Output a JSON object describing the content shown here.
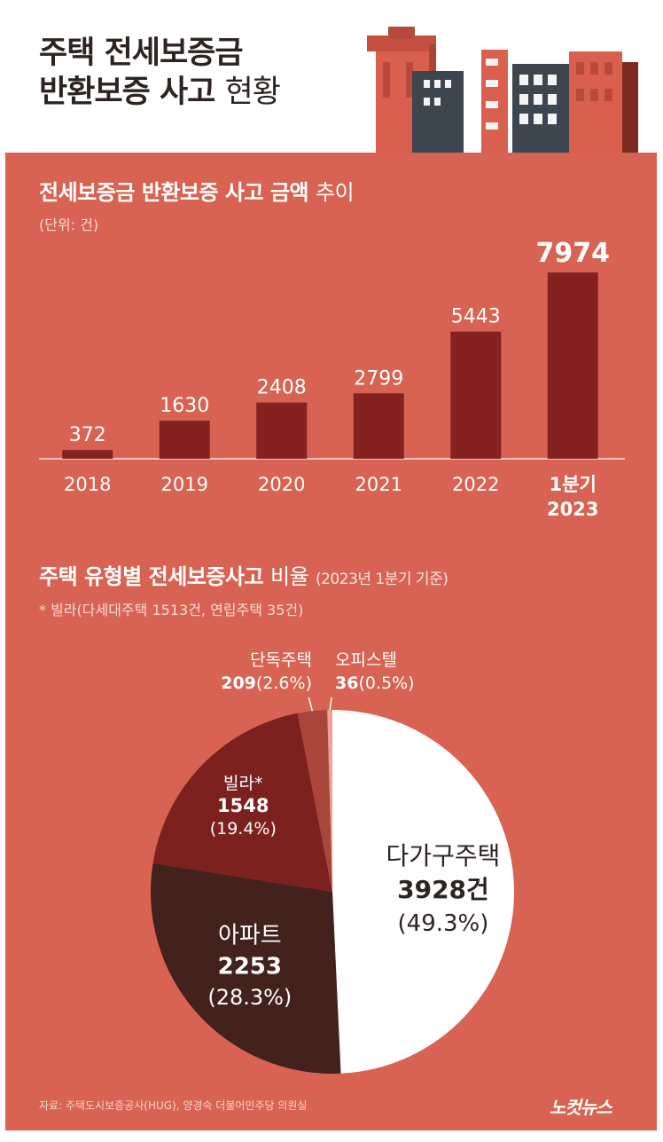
{
  "header": {
    "title_line1": "주택 전세보증금",
    "title_line2_bold": "반환보증 사고",
    "title_line2_light": "현황"
  },
  "chart_data": [
    {
      "type": "bar",
      "title_bold": "전세보증금 반환보증 사고 금액",
      "title_light": "추이",
      "unit_note": "(단위: 건)",
      "categories": [
        "2018",
        "2019",
        "2020",
        "2021",
        "2022",
        "1분기 2023"
      ],
      "category_lines": [
        [
          "2018"
        ],
        [
          "2019"
        ],
        [
          "2020"
        ],
        [
          "2021"
        ],
        [
          "2022"
        ],
        [
          "1분기",
          "2023"
        ]
      ],
      "values": [
        372,
        1630,
        2408,
        2799,
        5443,
        7974
      ],
      "value_labels": [
        "372",
        "1630",
        "2408",
        "2799",
        "5443",
        "7974"
      ],
      "highlight_index": 5,
      "ylim": [
        0,
        9000
      ],
      "colors": {
        "bar": "#84221f",
        "text": "#ffffff",
        "axis": "#ffffff"
      }
    },
    {
      "type": "pie",
      "title_bold": "주택 유형별 전세보증사고",
      "title_light": "비율",
      "title_small": "(2023년 1분기 기준)",
      "footnote": "* 빌라(다세대주택 1513건, 연립주택 35건)",
      "slices": [
        {
          "name": "다가구주택",
          "value": 3928,
          "value_text": "3928건",
          "percent_text": "(49.3%)",
          "color": "#ffffff",
          "text_color": "#2d2422"
        },
        {
          "name": "아파트",
          "value": 2253,
          "value_text": "2253",
          "percent_text": "(28.3%)",
          "color": "#43211d",
          "text_color": "#ffffff"
        },
        {
          "name": "빌라*",
          "value": 1548,
          "value_text": "1548",
          "percent_text": "(19.4%)",
          "color": "#7d211e",
          "text_color": "#ffffff"
        },
        {
          "name": "단독주택",
          "value": 209,
          "value_text": "209",
          "percent_text": "(2.6%)",
          "color": "#a9463c",
          "text_color": "#ffffff"
        },
        {
          "name": "오피스텔",
          "value": 36,
          "value_text": "36",
          "percent_text": "(0.5%)",
          "color": "#f2a196",
          "text_color": "#ffffff"
        }
      ]
    }
  ],
  "footer": {
    "source": "자료: 주택도시보증공사(HUG), 양경숙 더불어민주당 의원실",
    "brand": "노컷뉴스"
  }
}
